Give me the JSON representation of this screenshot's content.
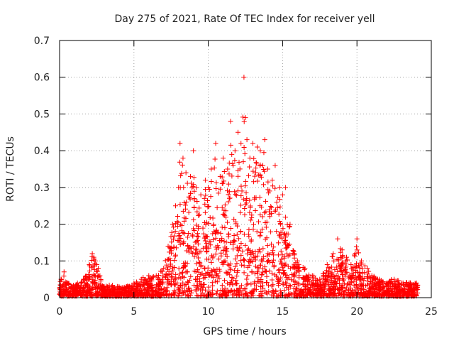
{
  "chart_data": {
    "type": "scatter",
    "title": "Day 275 of 2021, Rate Of TEC Index for receiver yell",
    "xlabel": "GPS time / hours",
    "ylabel": "ROTI / TECUs",
    "xlim": [
      0,
      25
    ],
    "ylim": [
      0,
      0.7
    ],
    "xticks": [
      0,
      5,
      10,
      15,
      20,
      25
    ],
    "yticks": [
      0,
      0.1,
      0.2,
      0.3,
      0.4,
      0.5,
      0.6,
      0.7
    ],
    "xtick_labels": [
      "0",
      "5",
      "10",
      "15",
      "20",
      "25"
    ],
    "ytick_labels": [
      "0",
      "0.1",
      "0.2",
      "0.3",
      "0.4",
      "0.5",
      "0.6",
      "0.7"
    ],
    "grid": true,
    "marker": "+",
    "color": "#ff0000",
    "series": [
      {
        "name": "ROTI",
        "x": [
          0.1,
          0.3,
          0.5,
          0.8,
          1.2,
          1.6,
          2.0,
          2.2,
          2.3,
          2.4,
          2.5,
          2.6,
          3.0,
          3.5,
          4.0,
          4.5,
          5.0,
          5.5,
          6.0,
          6.5,
          7.0,
          7.3,
          7.6,
          7.8,
          8.0,
          8.1,
          8.3,
          8.5,
          8.8,
          9.0,
          9.2,
          9.5,
          9.8,
          10.0,
          10.2,
          10.5,
          10.8,
          11.0,
          11.3,
          11.5,
          11.8,
          12.0,
          12.2,
          12.4,
          12.5,
          12.6,
          12.8,
          13.0,
          13.3,
          13.5,
          13.8,
          14.0,
          14.3,
          14.5,
          14.8,
          15.0,
          15.2,
          15.5,
          15.8,
          16.0,
          16.5,
          17.0,
          17.5,
          18.0,
          18.4,
          18.7,
          19.0,
          19.3,
          19.6,
          20.0,
          20.3,
          20.7,
          21.0,
          21.5,
          22.0,
          22.5,
          23.0,
          23.5,
          24.0
        ],
        "y": [
          0.05,
          0.07,
          0.04,
          0.03,
          0.04,
          0.05,
          0.09,
          0.12,
          0.11,
          0.1,
          0.09,
          0.08,
          0.03,
          0.03,
          0.03,
          0.03,
          0.04,
          0.05,
          0.06,
          0.06,
          0.08,
          0.14,
          0.2,
          0.25,
          0.3,
          0.42,
          0.38,
          0.34,
          0.33,
          0.4,
          0.3,
          0.28,
          0.32,
          0.3,
          0.35,
          0.42,
          0.33,
          0.38,
          0.35,
          0.48,
          0.4,
          0.45,
          0.42,
          0.6,
          0.49,
          0.43,
          0.38,
          0.42,
          0.41,
          0.4,
          0.43,
          0.35,
          0.32,
          0.36,
          0.3,
          0.28,
          0.3,
          0.2,
          0.12,
          0.1,
          0.08,
          0.06,
          0.05,
          0.09,
          0.12,
          0.16,
          0.13,
          0.11,
          0.09,
          0.16,
          0.1,
          0.08,
          0.06,
          0.05,
          0.04,
          0.05,
          0.04,
          0.04,
          0.04
        ]
      }
    ]
  }
}
